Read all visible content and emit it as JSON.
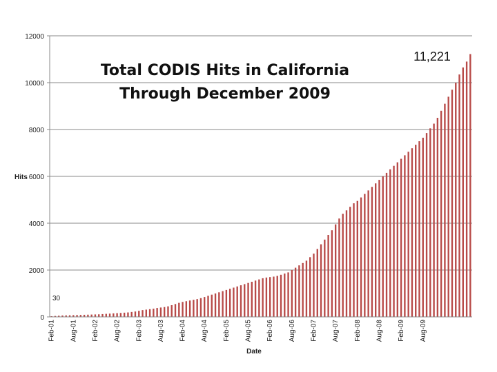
{
  "chart_data": {
    "type": "bar",
    "title_lines": [
      "Total CODIS Hits in California",
      "Through December 2009"
    ],
    "xlabel": "Date",
    "ylabel": "Hits",
    "ylim": [
      0,
      12000
    ],
    "yticks": [
      0,
      2000,
      4000,
      6000,
      8000,
      10000,
      12000
    ],
    "grid": true,
    "x_tick_labels": [
      "Feb-01",
      "Aug-01",
      "Feb-02",
      "Aug-02",
      "Feb-03",
      "Aug-03",
      "Feb-04",
      "Aug-04",
      "Feb-05",
      "Aug-05",
      "Feb-06",
      "Aug-06",
      "Feb-07",
      "Aug-07",
      "Feb-08",
      "Aug-08",
      "Feb-09",
      "Aug-09"
    ],
    "bar_color": "#b84a48",
    "annotations": {
      "start": "30",
      "end": "11,221"
    },
    "series": [
      {
        "name": "Hits",
        "values": [
          30,
          40,
          50,
          60,
          65,
          70,
          75,
          80,
          85,
          90,
          95,
          100,
          105,
          110,
          120,
          130,
          140,
          150,
          160,
          170,
          180,
          190,
          210,
          230,
          260,
          290,
          310,
          330,
          350,
          380,
          400,
          420,
          450,
          500,
          550,
          600,
          640,
          670,
          700,
          730,
          760,
          800,
          850,
          900,
          950,
          1000,
          1050,
          1100,
          1150,
          1200,
          1250,
          1300,
          1350,
          1400,
          1450,
          1500,
          1550,
          1600,
          1650,
          1680,
          1700,
          1720,
          1750,
          1800,
          1850,
          1900,
          2000,
          2100,
          2200,
          2300,
          2400,
          2550,
          2700,
          2900,
          3100,
          3300,
          3500,
          3700,
          3950,
          4200,
          4400,
          4550,
          4700,
          4850,
          4950,
          5100,
          5250,
          5400,
          5550,
          5700,
          5850,
          6000,
          6150,
          6300,
          6450,
          6600,
          6750,
          6900,
          7050,
          7200,
          7350,
          7500,
          7650,
          7850,
          8050,
          8250,
          8500,
          8800,
          9100,
          9400,
          9700,
          10000,
          10350,
          10650,
          10900,
          11221
        ]
      }
    ]
  }
}
